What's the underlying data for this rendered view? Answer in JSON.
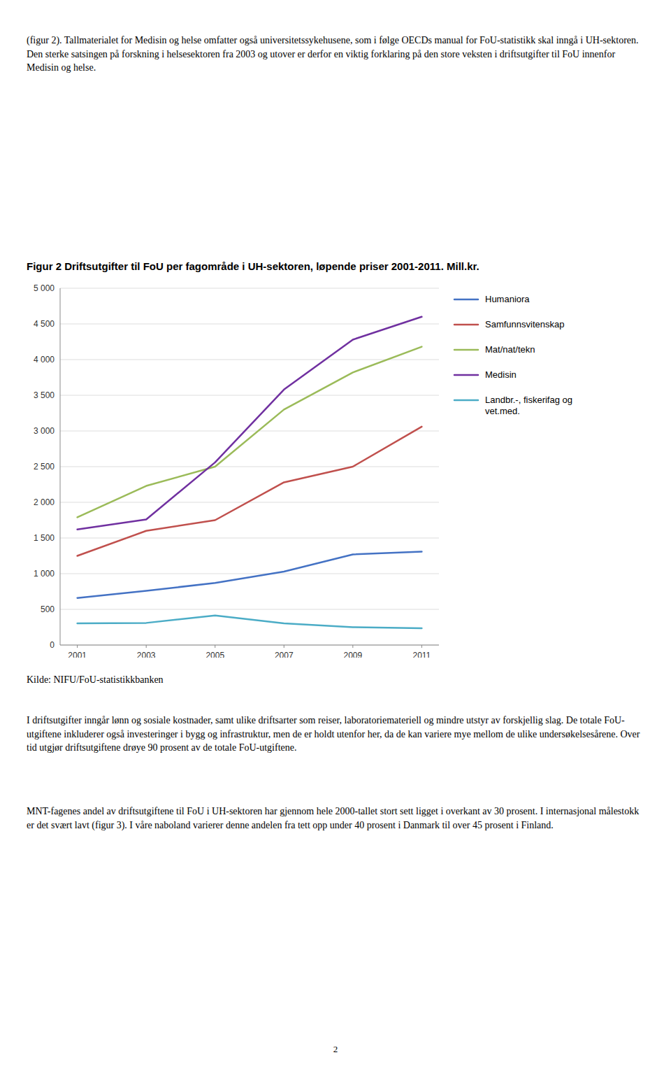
{
  "chart_data": {
    "type": "line",
    "title": "Figur 2 Driftsutgifter til FoU per fagområde i UH-sektoren, løpende priser 2001-2011. Mill.kr.",
    "x": [
      2001,
      2003,
      2005,
      2007,
      2009,
      2011
    ],
    "xlim": [
      2000.5,
      2011.5
    ],
    "xticks": [
      2001,
      2003,
      2005,
      2007,
      2009,
      2011
    ],
    "series": [
      {
        "name": "Humaniora",
        "color": "#4472C4",
        "values": [
          660,
          760,
          870,
          1030,
          1270,
          1310
        ]
      },
      {
        "name": "Samfunnsvitenskap",
        "color": "#C0504D",
        "values": [
          1250,
          1600,
          1750,
          2280,
          2500,
          3060
        ]
      },
      {
        "name": "Mat/nat/tekn",
        "color": "#9BBB59",
        "values": [
          1790,
          2230,
          2500,
          3300,
          3820,
          4180
        ]
      },
      {
        "name": "Medisin",
        "color": "#7030A0",
        "values": [
          1620,
          1760,
          2560,
          3580,
          4280,
          4600
        ]
      },
      {
        "name": "Landbr.-, fiskerifag og\nvet.med.",
        "color": "#4BACC6",
        "values": [
          305,
          310,
          415,
          305,
          250,
          235
        ]
      }
    ],
    "ylim": [
      0,
      5000
    ],
    "yticks": [
      0,
      500,
      {
        "value": 1000,
        "label": "1 000"
      },
      {
        "value": 1500,
        "label": "1 500"
      },
      {
        "value": 2000,
        "label": "2 000"
      },
      {
        "value": 2500,
        "label": "2 500"
      },
      {
        "value": 3000,
        "label": "3 000"
      },
      {
        "value": 3500,
        "label": "3 500"
      },
      {
        "value": 4000,
        "label": "4 000"
      },
      {
        "value": 4500,
        "label": "4 500"
      },
      {
        "value": 5000,
        "label": "5 000"
      }
    ],
    "grid": true,
    "legend": "right"
  },
  "text_above": "(figur 2). Tallmaterialet for Medisin og helse omfatter også universitetssykehusene, som i følge OECDs manual for FoU-statistikk skal inngå i UH-sektoren. Den sterke satsingen på forskning i helsesektoren fra 2003 og utover er derfor en viktig forklaring på den store veksten i driftsutgifter til FoU innenfor Medisin og helse.",
  "source": "Kilde: NIFU/FoU-statistikkbanken",
  "text_below_1": "I driftsutgifter inngår lønn og sosiale kostnader, samt ulike driftsarter som reiser, laboratoriemateriell og mindre utstyr av forskjellig slag. De totale FoU-utgiftene inkluderer også investeringer i bygg og infrastruktur, men de er holdt utenfor her, da de kan variere mye mellom de ulike undersøkelsesårene. Over tid utgjør driftsutgiftene drøye 90 prosent av de totale FoU-utgiftene.",
  "text_below_2": "MNT-fagenes andel av driftsutgiftene til FoU i UH-sektoren har gjennom hele 2000-tallet stort sett ligget i overkant av 30 prosent. I internasjonal målestokk er det svært lavt (figur 3). I våre naboland varierer denne andelen fra tett opp under 40 prosent i Danmark til over 45 prosent i Finland.",
  "page_num": "2"
}
